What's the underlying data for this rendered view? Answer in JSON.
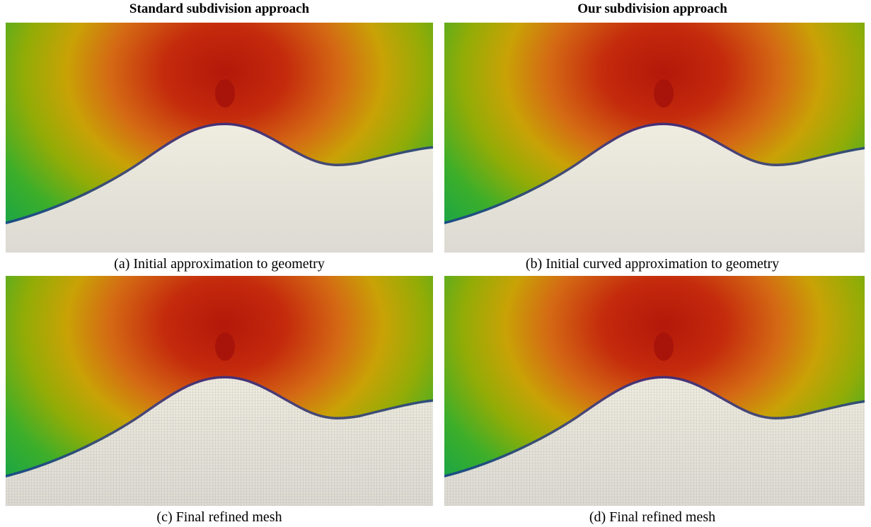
{
  "headers": {
    "left": "Standard subdivision approach",
    "right": "Our subdivision approach"
  },
  "captions": [
    "(a)  Initial approximation to geometry",
    "(b)  Initial curved approximation to geometry",
    "(c)  Final refined mesh",
    "(d)  Final refined mesh"
  ]
}
